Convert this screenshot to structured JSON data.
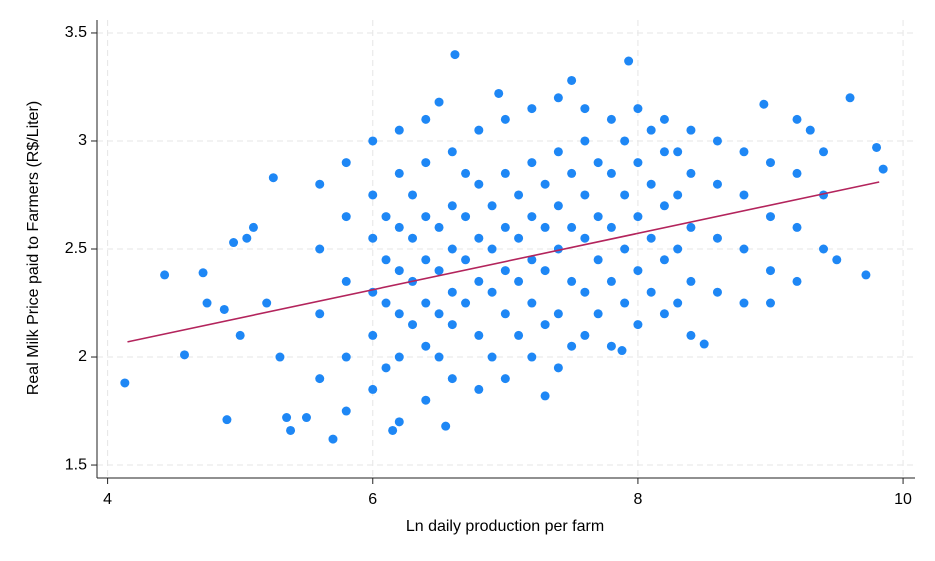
{
  "chart_data": {
    "type": "scatter",
    "x_label": "Ln daily production per farm",
    "y_label": "Real Milk Price paid to Farmers (R$/Liter)",
    "xlim": [
      3.92,
      10.09
    ],
    "ylim": [
      1.44,
      3.56
    ],
    "xticks": [
      4,
      6,
      8,
      10
    ],
    "yticks": [
      1.5,
      2,
      2.5,
      3,
      3.5
    ],
    "grid": true,
    "color": "#1e87f5",
    "x": [
      4.13,
      4.43,
      4.58,
      4.72,
      4.75,
      4.9,
      4.88,
      4.95,
      5.05,
      5.0,
      5.1,
      5.2,
      5.25,
      5.3,
      5.35,
      5.38,
      5.5,
      5.7,
      6.62,
      7.93,
      7.5,
      6.5,
      6.95,
      9.6,
      9.8,
      9.85,
      9.72,
      6.55,
      6.15,
      7.3,
      7.88,
      8.5,
      9.0,
      9.5,
      9.3,
      8.95,
      5.6,
      5.6,
      5.6,
      5.6,
      5.8,
      5.8,
      5.8,
      5.8,
      5.8,
      6.0,
      6.0,
      6.0,
      6.0,
      6.0,
      6.0,
      6.2,
      6.2,
      6.2,
      6.2,
      6.2,
      6.2,
      6.2,
      6.4,
      6.4,
      6.4,
      6.4,
      6.4,
      6.4,
      6.4,
      6.6,
      6.6,
      6.6,
      6.6,
      6.6,
      6.6,
      6.8,
      6.8,
      6.8,
      6.8,
      6.8,
      6.8,
      7.0,
      7.0,
      7.0,
      7.0,
      7.0,
      7.0,
      7.2,
      7.2,
      7.2,
      7.2,
      7.2,
      7.2,
      7.4,
      7.4,
      7.4,
      7.4,
      7.4,
      7.4,
      7.6,
      7.6,
      7.6,
      7.6,
      7.6,
      7.6,
      7.8,
      7.8,
      7.8,
      7.8,
      7.8,
      8.0,
      8.0,
      8.0,
      8.0,
      8.0,
      8.2,
      8.2,
      8.2,
      8.2,
      8.2,
      8.4,
      8.4,
      8.4,
      8.4,
      8.4,
      8.6,
      8.6,
      8.6,
      8.6,
      8.8,
      8.8,
      8.8,
      8.8,
      9.0,
      9.0,
      9.0,
      9.2,
      9.2,
      9.2,
      9.2,
      9.4,
      9.4,
      9.4,
      6.1,
      6.1,
      6.1,
      6.1,
      6.3,
      6.3,
      6.3,
      6.3,
      6.5,
      6.5,
      6.5,
      6.5,
      6.7,
      6.7,
      6.7,
      6.7,
      6.9,
      6.9,
      6.9,
      6.9,
      7.1,
      7.1,
      7.1,
      7.1,
      7.3,
      7.3,
      7.3,
      7.3,
      7.5,
      7.5,
      7.5,
      7.5,
      7.7,
      7.7,
      7.7,
      7.7,
      7.9,
      7.9,
      7.9,
      7.9,
      8.1,
      8.1,
      8.1,
      8.1,
      8.3,
      8.3,
      8.3,
      8.3
    ],
    "values": [
      1.88,
      2.38,
      2.01,
      2.39,
      2.25,
      1.71,
      2.22,
      2.53,
      2.55,
      2.1,
      2.6,
      2.25,
      2.83,
      2.0,
      1.72,
      1.66,
      1.72,
      1.62,
      3.4,
      3.37,
      3.28,
      3.18,
      3.22,
      3.2,
      2.97,
      2.87,
      2.38,
      1.68,
      1.66,
      1.82,
      2.03,
      2.06,
      2.25,
      2.45,
      3.05,
      3.17,
      2.2,
      2.5,
      2.8,
      1.9,
      2.0,
      2.35,
      2.65,
      2.9,
      1.75,
      1.85,
      2.1,
      2.3,
      2.55,
      2.75,
      3.0,
      1.7,
      2.0,
      2.2,
      2.4,
      2.6,
      2.85,
      3.05,
      1.8,
      2.05,
      2.25,
      2.45,
      2.65,
      2.9,
      3.1,
      1.9,
      2.15,
      2.3,
      2.5,
      2.7,
      2.95,
      1.85,
      2.1,
      2.35,
      2.55,
      2.8,
      3.05,
      1.9,
      2.2,
      2.4,
      2.6,
      2.85,
      3.1,
      2.0,
      2.25,
      2.45,
      2.65,
      2.9,
      3.15,
      1.95,
      2.2,
      2.5,
      2.7,
      2.95,
      3.2,
      2.1,
      2.3,
      2.55,
      2.75,
      3.0,
      3.15,
      2.05,
      2.35,
      2.6,
      2.85,
      3.1,
      2.15,
      2.4,
      2.65,
      2.9,
      3.15,
      2.2,
      2.45,
      2.7,
      2.95,
      3.1,
      2.1,
      2.35,
      2.6,
      2.85,
      3.05,
      2.3,
      2.55,
      2.8,
      3.0,
      2.25,
      2.5,
      2.75,
      2.95,
      2.4,
      2.65,
      2.9,
      2.35,
      2.6,
      2.85,
      3.1,
      2.5,
      2.75,
      2.95,
      2.25,
      2.45,
      2.65,
      1.95,
      2.15,
      2.35,
      2.55,
      2.75,
      2.0,
      2.2,
      2.4,
      2.6,
      2.25,
      2.45,
      2.65,
      2.85,
      2.0,
      2.3,
      2.5,
      2.7,
      2.1,
      2.35,
      2.55,
      2.75,
      2.15,
      2.4,
      2.6,
      2.8,
      2.05,
      2.35,
      2.6,
      2.85,
      2.2,
      2.45,
      2.65,
      2.9,
      2.25,
      2.5,
      2.75,
      3.0,
      2.3,
      2.55,
      2.8,
      3.05,
      2.25,
      2.5,
      2.75,
      2.95
    ],
    "fit": {
      "color": "#b3245c",
      "x": [
        4.15,
        9.82
      ],
      "values": [
        2.07,
        2.81
      ]
    }
  }
}
